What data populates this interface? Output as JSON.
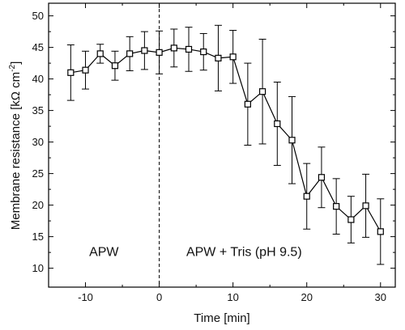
{
  "chart_data": {
    "type": "line",
    "xlabel": "Time [min]",
    "ylabel": {
      "main": "Membrane resistance [kΩ cm",
      "sup": "-2",
      "close": "]"
    },
    "xlim": [
      -15,
      32
    ],
    "ylim": [
      7,
      52
    ],
    "xticks": [
      -10,
      0,
      10,
      20,
      30
    ],
    "xtick_labels": [
      "-10",
      "0",
      "10",
      "20",
      "30"
    ],
    "yticks": [
      10,
      15,
      20,
      25,
      30,
      35,
      40,
      45,
      50
    ],
    "ytick_labels": [
      "10",
      "15",
      "20",
      "25",
      "30",
      "35",
      "40",
      "45",
      "50"
    ],
    "grid": false,
    "vertical_line": {
      "x": 0,
      "style": "dashed"
    },
    "annotations": [
      {
        "text": "APW",
        "x": -7.5,
        "y": 12.7
      },
      {
        "text": "APW + Tris (pH 9.5)",
        "x": 11.5,
        "y": 12.7
      }
    ],
    "series": [
      {
        "marker": "open-square",
        "color": "#000000",
        "x": [
          -12,
          -10,
          -8,
          -6,
          -4,
          -2,
          0,
          2,
          4,
          6,
          8,
          10,
          12,
          14,
          16,
          18,
          20,
          22,
          24,
          26,
          28,
          30
        ],
        "y": [
          41.0,
          41.4,
          44.0,
          42.1,
          44.0,
          44.5,
          44.2,
          44.9,
          44.7,
          44.3,
          43.3,
          43.5,
          36.0,
          38.0,
          32.9,
          30.3,
          21.4,
          24.4,
          19.8,
          17.7,
          19.9,
          15.8
        ],
        "err": [
          4.4,
          3.0,
          1.5,
          2.3,
          2.7,
          3.0,
          3.4,
          3.0,
          3.5,
          2.9,
          5.2,
          4.2,
          6.5,
          8.3,
          6.6,
          6.9,
          5.2,
          4.8,
          4.4,
          3.7,
          5.0,
          5.2
        ]
      }
    ]
  }
}
